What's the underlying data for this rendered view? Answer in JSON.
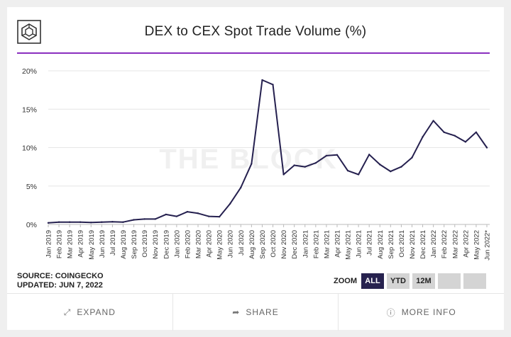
{
  "header": {
    "title": "DEX to CEX Spot Trade Volume (%)"
  },
  "watermark": "THE BLOCK",
  "meta": {
    "source": "SOURCE: COINGECKO",
    "updated": "UPDATED: JUN 7, 2022"
  },
  "zoom": {
    "label": "ZOOM",
    "buttons": [
      "ALL",
      "YTD",
      "12M",
      "",
      ""
    ],
    "active": "ALL"
  },
  "footer": {
    "expand": "EXPAND",
    "share": "SHARE",
    "more_info": "MORE INFO"
  },
  "colors": {
    "line": "#25204f",
    "accent": "#8a2fbf",
    "active_button": "#27224f"
  },
  "chart_data": {
    "type": "line",
    "title": "DEX to CEX Spot Trade Volume (%)",
    "xlabel": "",
    "ylabel": "",
    "ylim": [
      0,
      20
    ],
    "yticks": [
      "0%",
      "5%",
      "10%",
      "15%",
      "20%"
    ],
    "grid": true,
    "categories": [
      "Jan 2019",
      "Feb 2019",
      "Mar 2019",
      "Apr 2019",
      "May 2019",
      "Jun 2019",
      "Jul 2019",
      "Aug 2019",
      "Sep 2019",
      "Oct 2019",
      "Nov 2019",
      "Dec 2019",
      "Jan 2020",
      "Feb 2020",
      "Mar 2020",
      "Apr 2020",
      "May 2020",
      "Jun 2020",
      "Jul 2020",
      "Aug 2020",
      "Sep 2020",
      "Oct 2020",
      "Nov 2020",
      "Dec 2020",
      "Jan 2021",
      "Feb 2021",
      "Mar 2021",
      "Apr 2021",
      "May 2021",
      "Jun 2021",
      "Jul 2021",
      "Aug 2021",
      "Sep 2021",
      "Oct 2021",
      "Nov 2021",
      "Dec 2021",
      "Jan 2022",
      "Feb 2022",
      "Mar 2022",
      "Apr 2022",
      "May 2022",
      "Jun 2022"
    ],
    "tick_labels": [
      "Jan 2019",
      "Feb 2019",
      "Mar 2019",
      "Apr 2019",
      "May 2019",
      "Jun 2019",
      "Jul 2019",
      "Aug 2019",
      "Sep 2019",
      "Oct 2019",
      "Nov 2019",
      "Dec 2019",
      "Jan 2020",
      "Feb 2020",
      "Mar 2020",
      "Apr 2020",
      "May 2020",
      "Jun 2020",
      "Jul 2020",
      "Aug 2020",
      "Sep 2020",
      "Oct 2020",
      "Nov 2020",
      "Dec 2020",
      "Jan 2021",
      "Feb 2021",
      "Mar 2021",
      "Apr 2021",
      "May 2021",
      "Jun 2021",
      "Jul 2021",
      "Aug 2021",
      "Sep 2021",
      "Oct 2021",
      "Nov 2021",
      "Dec 2021",
      "Jan 2022",
      "Feb 2022",
      "Mar 2022",
      "Apr 2022",
      "May 2022",
      "Jun 2022*"
    ],
    "series": [
      {
        "values": [
          0.2,
          0.3,
          0.3,
          0.3,
          0.25,
          0.3,
          0.35,
          0.3,
          0.6,
          0.7,
          0.7,
          1.3,
          1.05,
          1.65,
          1.45,
          1.05,
          1.0,
          2.7,
          4.8,
          7.9,
          18.8,
          18.2,
          6.5,
          7.7,
          7.5,
          8.0,
          8.95,
          9.05,
          7.0,
          6.5,
          9.1,
          7.8,
          6.9,
          7.5,
          8.7,
          11.4,
          13.5,
          12.0,
          11.55,
          10.75,
          12.0,
          10.0
        ]
      }
    ]
  }
}
